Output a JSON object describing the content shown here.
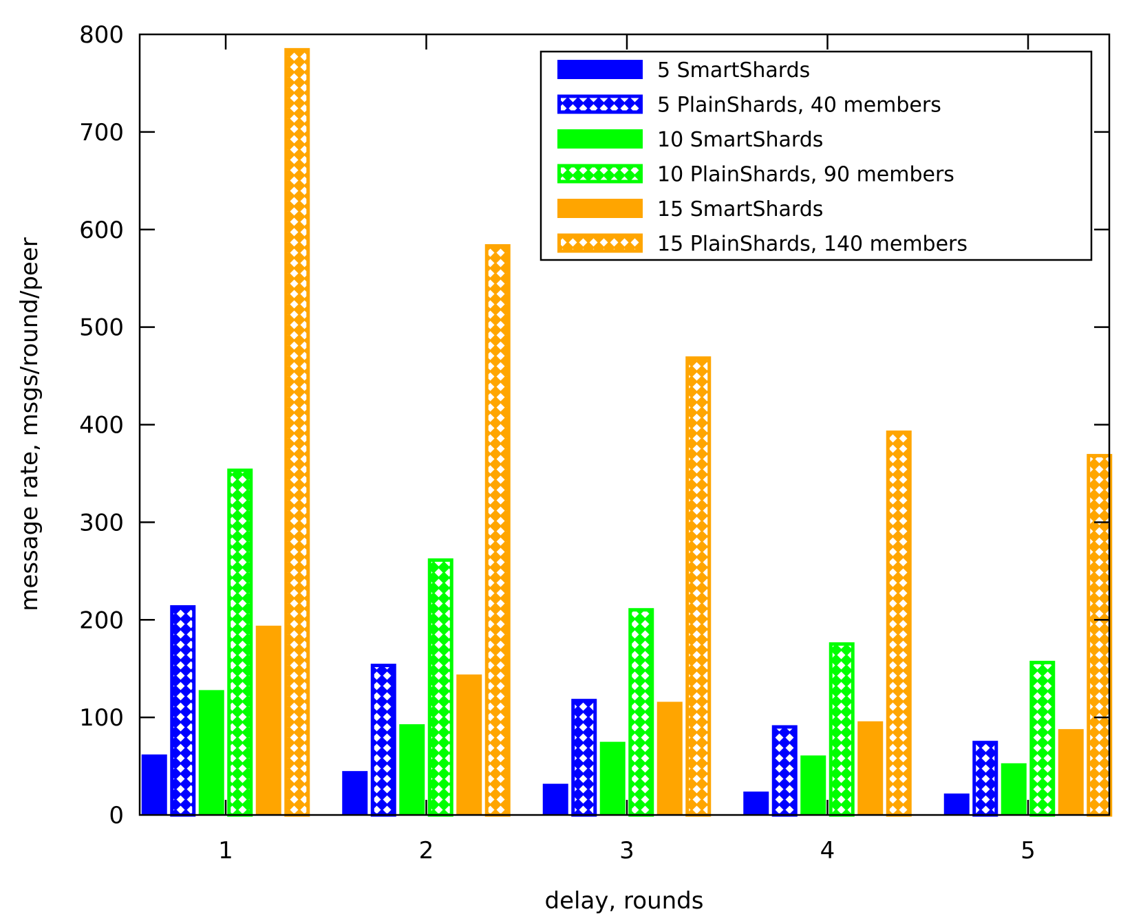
{
  "chart_data": {
    "type": "bar",
    "title": "",
    "xlabel": "delay, rounds",
    "ylabel": "message rate, msgs/round/peer",
    "categories": [
      "1",
      "2",
      "3",
      "4",
      "5"
    ],
    "ylim": [
      0,
      800
    ],
    "yticks": [
      0,
      100,
      200,
      300,
      400,
      500,
      600,
      700,
      800
    ],
    "ytick_labels": [
      "0",
      "100",
      "200",
      "300",
      "400",
      "500",
      "600",
      "700",
      "800"
    ],
    "grid": false,
    "legend_position": "top-right",
    "series": [
      {
        "name": "5 SmartShards",
        "color": "#0000ff",
        "pattern": "solid",
        "values": [
          62,
          45,
          32,
          24,
          22
        ]
      },
      {
        "name": "5 PlainShards, 40 members",
        "color": "#0000ff",
        "pattern": "crosshatch",
        "values": [
          215,
          155,
          119,
          92,
          76
        ]
      },
      {
        "name": "10 SmartShards",
        "color": "#00ff00",
        "pattern": "solid",
        "values": [
          128,
          93,
          75,
          61,
          53
        ]
      },
      {
        "name": "10 PlainShards, 90 members",
        "color": "#00ff00",
        "pattern": "crosshatch",
        "values": [
          355,
          263,
          212,
          177,
          158
        ]
      },
      {
        "name": "15 SmartShards",
        "color": "#ffa500",
        "pattern": "solid",
        "values": [
          194,
          144,
          116,
          96,
          88
        ]
      },
      {
        "name": "15 PlainShards, 140 members",
        "color": "#ffa500",
        "pattern": "crosshatch",
        "values": [
          786,
          585,
          470,
          394,
          370
        ]
      }
    ]
  }
}
